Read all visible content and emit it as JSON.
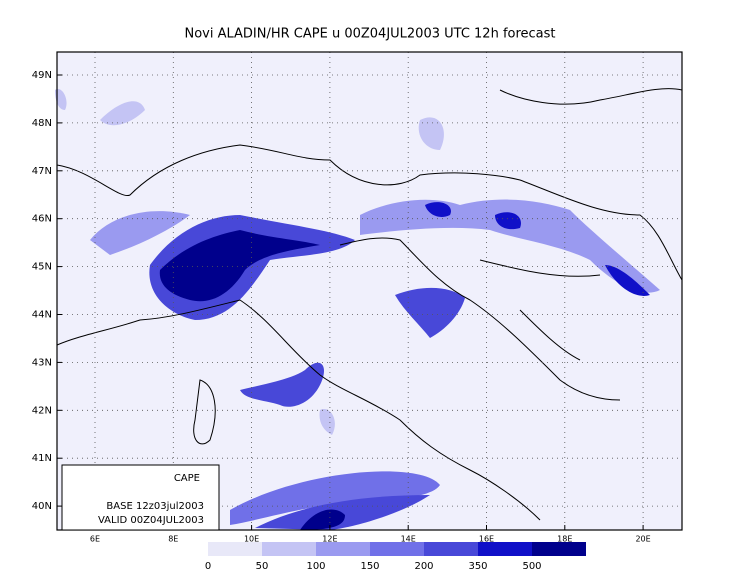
{
  "header": {
    "title": "Novi ALADIN/HR CAPE u 00Z04JUL2003 UTC 12h forecast"
  },
  "map": {
    "lat_labels": [
      "49N",
      "48N",
      "47N",
      "46N",
      "45N",
      "44N",
      "43N",
      "42N",
      "41N",
      "40N"
    ],
    "lon_labels": [
      "6E",
      "8E",
      "10E",
      "12E",
      "14E",
      "16E",
      "18E",
      "20E"
    ]
  },
  "info_box": {
    "field": "CAPE",
    "base": "BASE 12z03jul2003",
    "valid": "VALID 00Z04JUL2003"
  },
  "colorbar": {
    "labels": [
      "0",
      "50",
      "100",
      "150",
      "200",
      "350",
      "500"
    ],
    "colors": [
      "#e8e8f8",
      "#c4c4f4",
      "#9a9af0",
      "#7070e8",
      "#4848d8",
      "#1010c8",
      "#00008c"
    ]
  }
}
